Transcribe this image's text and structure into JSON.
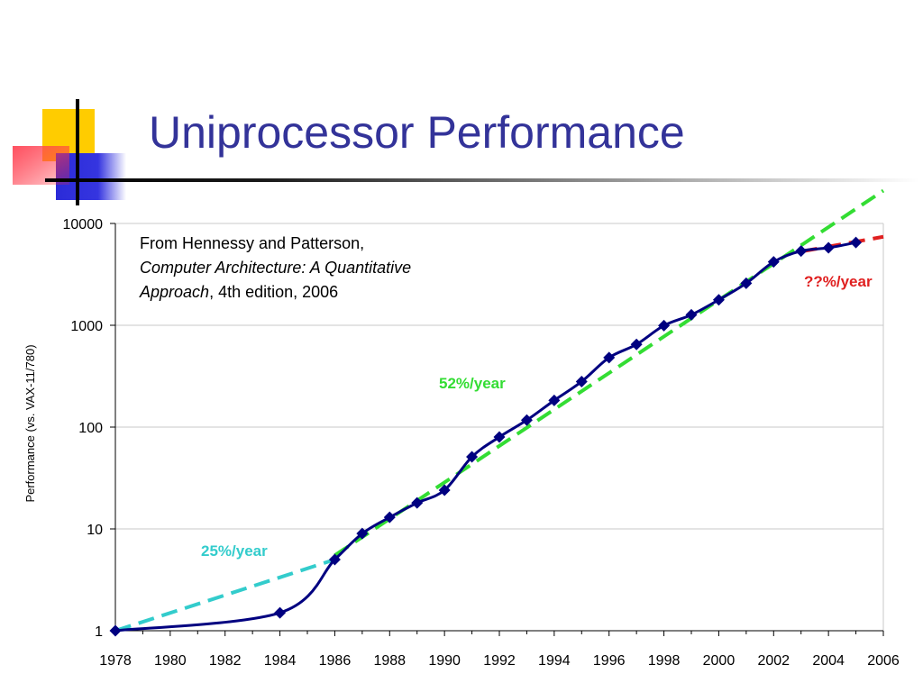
{
  "slide": {
    "title": "Uniprocessor Performance"
  },
  "citation": {
    "line1": "From Hennessy and Patterson,",
    "book": "Computer Architecture: A Quantitative Approach",
    "edition": ", 4th edition, 2006"
  },
  "colors": {
    "title": "#333399",
    "series": "#000080",
    "trend_25": "#33CCCC",
    "trend_52": "#33DD33",
    "trend_unknown": "#E02020"
  },
  "chart_data": {
    "type": "line",
    "title": "",
    "xlabel": "",
    "ylabel": "Performance (vs. VAX-11/780)",
    "yscale": "log",
    "xlim": [
      1978,
      2006
    ],
    "ylim": [
      1,
      10000
    ],
    "grid": "horizontal",
    "x_ticks": [
      "1978",
      "1980",
      "1982",
      "1984",
      "1986",
      "1988",
      "1990",
      "1992",
      "1994",
      "1996",
      "1998",
      "2000",
      "2002",
      "2004",
      "2006"
    ],
    "y_ticks": [
      "1",
      "10",
      "100",
      "1000",
      "10000"
    ],
    "series": [
      {
        "x": [
          1978,
          1984,
          1986,
          1987,
          1988,
          1989,
          1990,
          1991,
          1992,
          1993,
          1994,
          1995,
          1996,
          1997,
          1998,
          1999,
          2000,
          2001,
          2002,
          2003,
          2004,
          2005
        ],
        "y": [
          1,
          1.5,
          5,
          9,
          13,
          18,
          24,
          51,
          80,
          117,
          183,
          280,
          481,
          649,
          993,
          1267,
          1779,
          2584,
          4195,
          5364,
          5764,
          6505
        ]
      }
    ],
    "trendlines": [
      {
        "label": "25%/year",
        "x": [
          1978,
          1986
        ],
        "y": [
          1,
          5
        ]
      },
      {
        "label": "52%/year",
        "x": [
          1986,
          2006
        ],
        "y": [
          5.5,
          21000
        ]
      },
      {
        "label": "??%/year",
        "x": [
          2003,
          2006
        ],
        "y": [
          5300,
          7400
        ]
      }
    ]
  }
}
